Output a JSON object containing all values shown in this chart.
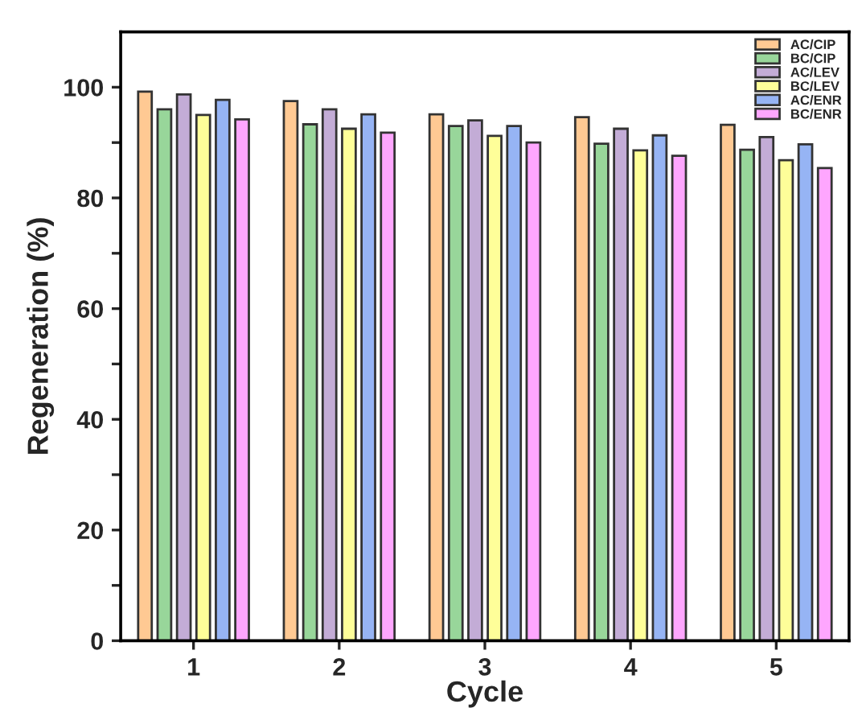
{
  "chart_data": {
    "type": "bar",
    "xlabel": "Cycle",
    "ylabel": "Regeneration (%)",
    "categories": [
      "1",
      "2",
      "3",
      "4",
      "5"
    ],
    "series": [
      {
        "name": "AC/CIP",
        "color": "#ffc993",
        "values": [
          99.2,
          97.5,
          95.1,
          94.6,
          93.2
        ]
      },
      {
        "name": "BC/CIP",
        "color": "#98d69a",
        "values": [
          96,
          93.3,
          93,
          89.8,
          88.7
        ]
      },
      {
        "name": "AC/LEV",
        "color": "#c3acd6",
        "values": [
          98.7,
          96,
          94,
          92.5,
          91
        ]
      },
      {
        "name": "BC/LEV",
        "color": "#fefe99",
        "values": [
          95,
          92.5,
          91.2,
          88.6,
          86.8
        ]
      },
      {
        "name": "AC/ENR",
        "color": "#96b4f4",
        "values": [
          97.7,
          95.1,
          93,
          91.3,
          89.7
        ]
      },
      {
        "name": "BC/ENR",
        "color": "#fea6fe",
        "values": [
          94.2,
          91.8,
          90,
          87.6,
          85.4
        ]
      }
    ],
    "ylim": [
      0,
      110
    ],
    "yticks": [
      0,
      {
        "value": 10,
        "label": null
      },
      20,
      {
        "value": 30,
        "label": null
      },
      40,
      {
        "value": 50,
        "label": null
      },
      60,
      {
        "value": 70,
        "label": null
      },
      80,
      {
        "value": 90,
        "label": null
      },
      100
    ],
    "legend": "top right",
    "grid": false
  }
}
